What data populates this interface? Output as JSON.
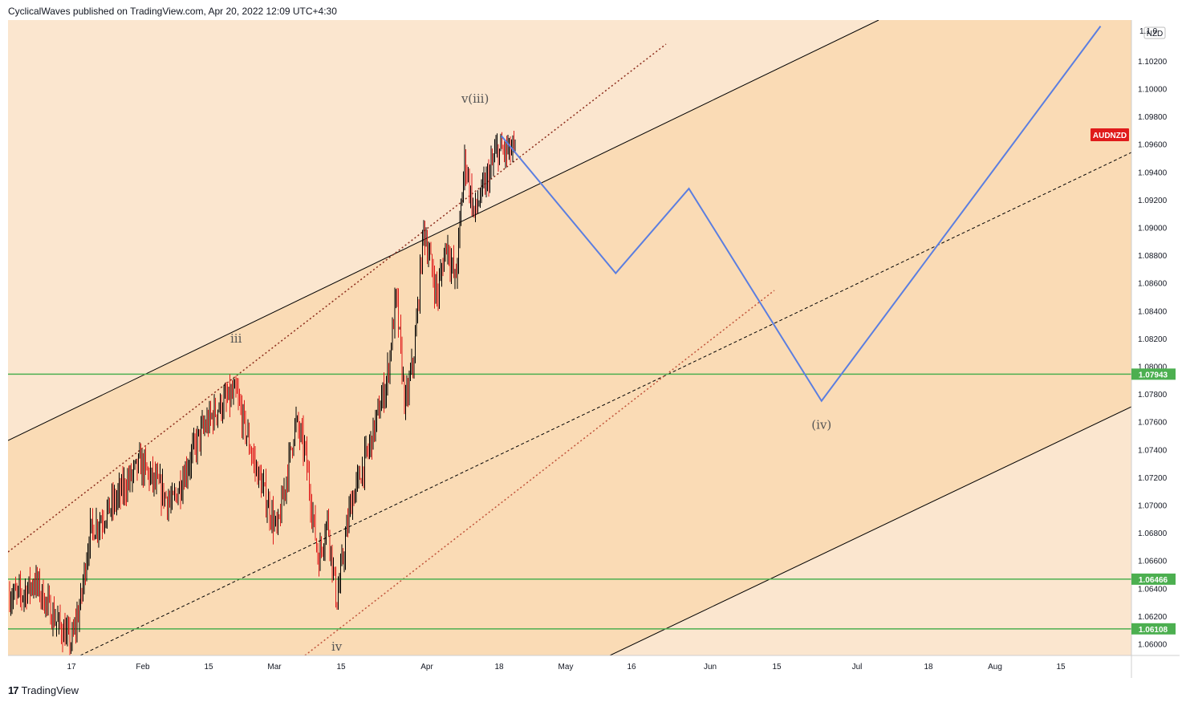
{
  "header": {
    "publisher_line": "CyclicalWaves published on TradingView.com, Apr 20, 2022 12:09 UTC+4:30"
  },
  "footer": {
    "logo_mark": "17",
    "brand": "TradingView"
  },
  "colors": {
    "channel_inner": "#fadbb5",
    "channel_outer": "#fbe6cf",
    "hline": "#4caf50",
    "projection": "#5b7ee0",
    "candle_up": "#000000",
    "candle_down": "#e01b1b",
    "badge_symbol": "#e01b1b"
  },
  "chart_data": {
    "type": "candlestick",
    "symbol": "AUDNZD",
    "currency_label": "NZD",
    "y_range": [
      1.0585,
      1.1045
    ],
    "y_ticks": [
      "1.10200",
      "1.10000",
      "1.09800",
      "1.09600",
      "1.09400",
      "1.09200",
      "1.09000",
      "1.08800",
      "1.08600",
      "1.08400",
      "1.08200",
      "1.08000",
      "1.07800",
      "1.07600",
      "1.07400",
      "1.07200",
      "1.07000",
      "1.06800",
      "1.06600",
      "1.06400",
      "1.06200",
      "1.06000"
    ],
    "x_ticks": [
      "17",
      "Feb",
      "15",
      "Mar",
      "15",
      "Apr",
      "18",
      "May",
      "16",
      "Jun",
      "15",
      "Jul",
      "18",
      "Aug",
      "15"
    ],
    "horizontal_levels": [
      {
        "value": 1.07943,
        "label": "1.07943"
      },
      {
        "value": 1.06466,
        "label": "1.06466"
      },
      {
        "value": 1.06108,
        "label": "1.06108"
      }
    ],
    "top_axis_label": "1.1 0",
    "wave_labels": [
      {
        "text": "iii",
        "date": "Feb 22",
        "price": 1.0817
      },
      {
        "text": "iv",
        "date": "Mar 16",
        "price": 1.0595
      },
      {
        "text": "v",
        "date": "Apr 13",
        "price": 1.099
      },
      {
        "text": "(iii)",
        "date": "Apr 16",
        "price": 1.099
      },
      {
        "text": "(iv)",
        "date": "Jun 30",
        "price": 1.0755
      }
    ],
    "projection_path": [
      {
        "date": "Apr 21",
        "price": 1.0966
      },
      {
        "date": "May 16",
        "price": 1.0867
      },
      {
        "date": "Jun 1",
        "price": 1.0928
      },
      {
        "date": "Jun 30",
        "price": 1.0775
      },
      {
        "date": "Aug 30",
        "price": 1.1045
      }
    ],
    "price_path": [
      {
        "date": "Jan 6",
        "price": 1.0635
      },
      {
        "date": "Jan 9",
        "price": 1.0645
      },
      {
        "date": "Jan 13",
        "price": 1.062
      },
      {
        "date": "Jan 17",
        "price": 1.06
      },
      {
        "date": "Jan 19",
        "price": 1.063
      },
      {
        "date": "Jan 21",
        "price": 1.068
      },
      {
        "date": "Jan 26",
        "price": 1.07
      },
      {
        "date": "Feb 1",
        "price": 1.073
      },
      {
        "date": "Feb 8",
        "price": 1.07
      },
      {
        "date": "Feb 14",
        "price": 1.075
      },
      {
        "date": "Feb 18",
        "price": 1.077
      },
      {
        "date": "Feb 22",
        "price": 1.078
      },
      {
        "date": "Feb 26",
        "price": 1.073
      },
      {
        "date": "Mar 1",
        "price": 1.07
      },
      {
        "date": "Mar 3",
        "price": 1.068
      },
      {
        "date": "Mar 7",
        "price": 1.076
      },
      {
        "date": "Mar 9",
        "price": 1.074
      },
      {
        "date": "Mar 12",
        "price": 1.066
      },
      {
        "date": "Mar 14",
        "price": 1.069
      },
      {
        "date": "Mar 16",
        "price": 1.063
      },
      {
        "date": "Mar 19",
        "price": 1.07
      },
      {
        "date": "Mar 23",
        "price": 1.074
      },
      {
        "date": "Mar 27",
        "price": 1.079
      },
      {
        "date": "Mar 29",
        "price": 1.085
      },
      {
        "date": "Mar 31",
        "price": 1.077
      },
      {
        "date": "Apr 2",
        "price": 1.081
      },
      {
        "date": "Apr 4",
        "price": 1.09
      },
      {
        "date": "Apr 7",
        "price": 1.085
      },
      {
        "date": "Apr 9",
        "price": 1.089
      },
      {
        "date": "Apr 11",
        "price": 1.086
      },
      {
        "date": "Apr 13",
        "price": 1.095
      },
      {
        "date": "Apr 15",
        "price": 1.091
      },
      {
        "date": "Apr 18",
        "price": 1.0935
      },
      {
        "date": "Apr 20",
        "price": 1.0955
      }
    ]
  }
}
